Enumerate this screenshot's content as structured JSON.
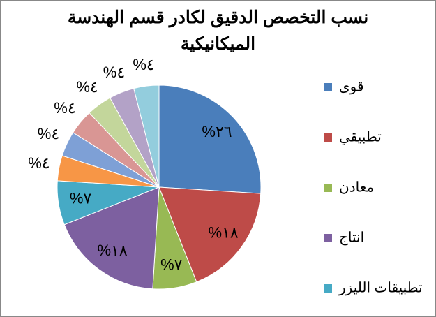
{
  "chart_data": {
    "type": "pie",
    "title": "نسب التخصص الدقيق لكادر قسم الهندسة الميكانيكية",
    "categories": [
      "قوى",
      "تطبيقي",
      "معادن",
      "انتاج",
      "تطبيقات الليزر",
      null,
      null,
      null,
      null,
      null,
      null
    ],
    "values": [
      26,
      18,
      7,
      18,
      7,
      4,
      4,
      4,
      4,
      4,
      4
    ],
    "value_labels": [
      "%٢٦",
      "%١٨",
      "%٧",
      "%١٨",
      "%٧",
      "%٤",
      "%٤",
      "%٤",
      "%٤",
      "%٤",
      "%٤"
    ],
    "colors": [
      "#4a7ebb",
      "#be4b48",
      "#98b954",
      "#7d60a0",
      "#46aac5",
      "#f79646",
      "#7ea0d6",
      "#d99694",
      "#c3d69b",
      "#b3a2c7",
      "#93cddd"
    ],
    "legend": "right"
  }
}
